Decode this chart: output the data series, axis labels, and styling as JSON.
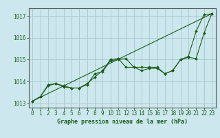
{
  "title": "Graphe pression niveau de la mer (hPa)",
  "bg_color": "#cce8ee",
  "grid_color": "#aacccc",
  "line_color": "#1a5c1a",
  "xlim": [
    -0.5,
    23.5
  ],
  "ylim": [
    1012.8,
    1017.35
  ],
  "yticks": [
    1013,
    1014,
    1015,
    1016,
    1017
  ],
  "xticks": [
    0,
    1,
    2,
    3,
    4,
    5,
    6,
    7,
    8,
    9,
    10,
    11,
    12,
    13,
    14,
    15,
    16,
    17,
    18,
    19,
    20,
    21,
    22,
    23
  ],
  "line1_y": [
    1013.1,
    1013.3,
    1013.8,
    1013.9,
    1013.75,
    1013.7,
    1013.7,
    1013.85,
    1014.35,
    1014.45,
    1014.95,
    1015.0,
    1015.05,
    1014.65,
    1014.65,
    1014.65,
    1014.65,
    1014.35,
    1014.5,
    1015.0,
    1015.1,
    1015.05,
    1016.2,
    1017.1
  ],
  "line2_y": [
    1013.1,
    1013.3,
    1013.85,
    1013.9,
    1013.8,
    1013.7,
    1013.7,
    1013.9,
    1014.2,
    1014.5,
    1015.0,
    1015.05,
    1014.65,
    1014.65,
    1014.5,
    1014.6,
    1014.6,
    1014.35,
    1014.5,
    1015.0,
    1015.15,
    1016.3,
    1017.05,
    1017.1
  ],
  "line3_x": [
    0,
    23
  ],
  "line3_y": [
    1013.1,
    1017.1
  ],
  "title_fontsize": 6.0,
  "tick_fontsize": 5.5
}
